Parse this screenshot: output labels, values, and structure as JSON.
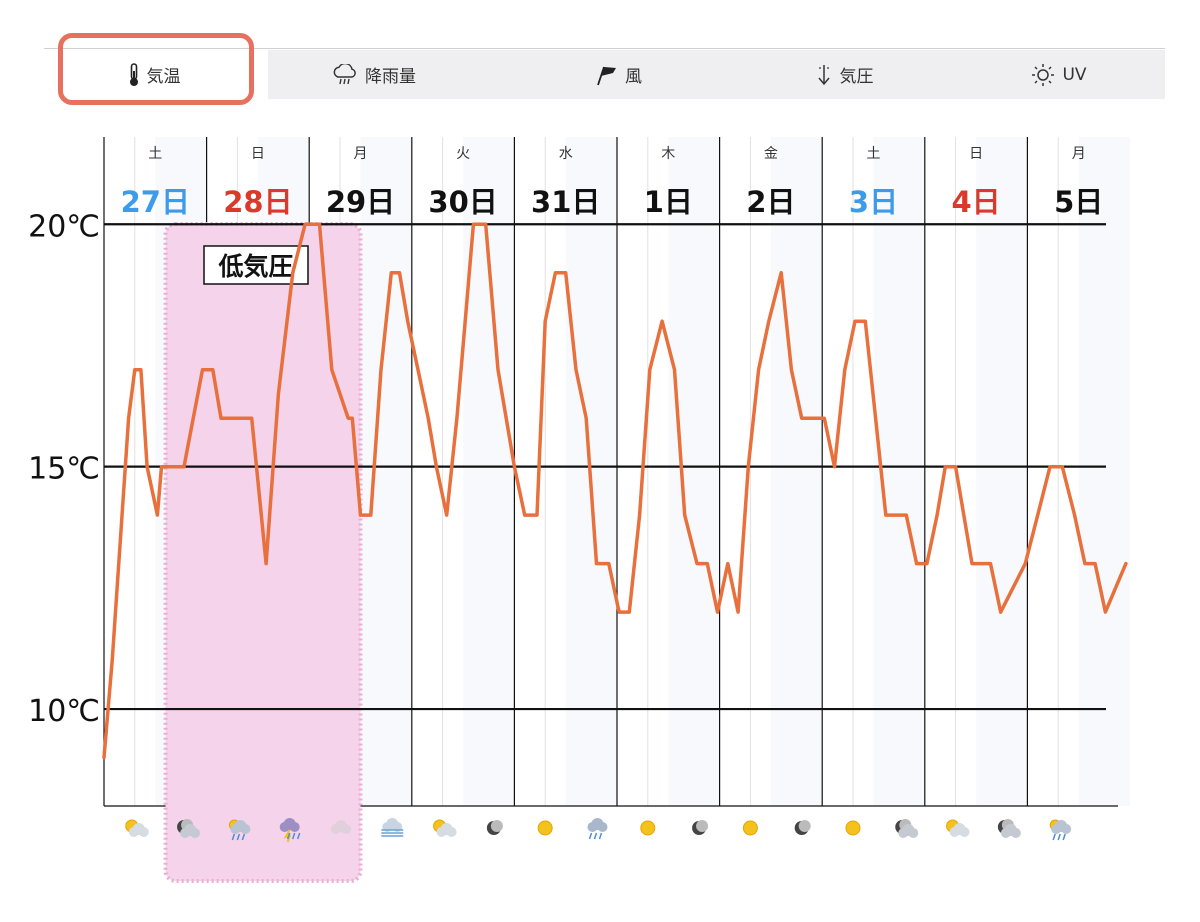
{
  "tabs": [
    {
      "label": "気温",
      "icon": "thermometer-icon"
    },
    {
      "label": "降雨量",
      "icon": "rain-cloud-icon"
    },
    {
      "label": "風",
      "icon": "wind-flag-icon"
    },
    {
      "label": "気圧",
      "icon": "pressure-arrow-icon"
    },
    {
      "label": "UV",
      "icon": "sun-icon"
    }
  ],
  "colors": {
    "line": "#e8703c",
    "saturday": "#3d9be9",
    "sunday": "#d93a2b",
    "annotation_fill": "#f5d3ea",
    "annotation_border": "#ebaed3",
    "tab_highlight": "#e8705f"
  },
  "annotation": {
    "label": "低気圧",
    "start_day_index": 0.6,
    "end_day_index": 2.5
  },
  "chart_data": {
    "type": "line",
    "title": "",
    "xlabel": "",
    "ylabel": "",
    "ylim": [
      8,
      21.8
    ],
    "yticks": [
      {
        "value": 10,
        "label": "10℃"
      },
      {
        "value": 15,
        "label": "15℃"
      },
      {
        "value": 20,
        "label": "20℃"
      }
    ],
    "grid": true,
    "days": [
      {
        "weekday": "土",
        "date": "27日",
        "type": "sat"
      },
      {
        "weekday": "日",
        "date": "28日",
        "type": "sun"
      },
      {
        "weekday": "月",
        "date": "29日",
        "type": "week"
      },
      {
        "weekday": "火",
        "date": "30日",
        "type": "week"
      },
      {
        "weekday": "水",
        "date": "31日",
        "type": "week"
      },
      {
        "weekday": "木",
        "date": "1日",
        "type": "week"
      },
      {
        "weekday": "金",
        "date": "2日",
        "type": "week"
      },
      {
        "weekday": "土",
        "date": "3日",
        "type": "sat"
      },
      {
        "weekday": "日",
        "date": "4日",
        "type": "sun"
      },
      {
        "weekday": "月",
        "date": "5日",
        "type": "week"
      }
    ],
    "x_unit": "days since start of 27日",
    "series": [
      {
        "name": "",
        "x": [
          0.0,
          0.08,
          0.16,
          0.24,
          0.3,
          0.36,
          0.42,
          0.52,
          0.56,
          0.72,
          0.78,
          0.96,
          1.06,
          1.14,
          1.22,
          1.36,
          1.44,
          1.58,
          1.7,
          1.84,
          1.96,
          2.1,
          2.22,
          2.38,
          2.42,
          2.5,
          2.6,
          2.7,
          2.8,
          2.88,
          2.96,
          3.06,
          3.16,
          3.24,
          3.34,
          3.44,
          3.52,
          3.6,
          3.72,
          3.84,
          3.92,
          4.0,
          4.1,
          4.22,
          4.3,
          4.4,
          4.5,
          4.6,
          4.7,
          4.8,
          4.92,
          5.02,
          5.12,
          5.22,
          5.32,
          5.44,
          5.56,
          5.66,
          5.78,
          5.88,
          5.98,
          6.08,
          6.18,
          6.28,
          6.38,
          6.48,
          6.6,
          6.7,
          6.8,
          6.9,
          7.02,
          7.12,
          7.22,
          7.32,
          7.42,
          7.52,
          7.62,
          7.72,
          7.82,
          7.92,
          8.02,
          8.12,
          8.2,
          8.3,
          8.38,
          8.46,
          8.56,
          8.64,
          8.74,
          8.86,
          8.98,
          9.1,
          9.22,
          9.34,
          9.46,
          9.56,
          9.66,
          9.76,
          9.86,
          9.96
        ],
        "values": [
          9.0,
          11.0,
          13.5,
          16.0,
          17.0,
          17.0,
          15.0,
          14.0,
          15.0,
          15.0,
          15.0,
          17.0,
          17.0,
          16.0,
          16.0,
          16.0,
          16.0,
          13.0,
          16.5,
          19.0,
          20.0,
          20.0,
          17.0,
          16.0,
          16.0,
          14.0,
          14.0,
          17.0,
          19.0,
          19.0,
          18.0,
          17.0,
          16.0,
          15.0,
          14.0,
          16.0,
          18.0,
          20.0,
          20.0,
          17.0,
          16.0,
          15.0,
          14.0,
          14.0,
          18.0,
          19.0,
          19.0,
          17.0,
          16.0,
          13.0,
          13.0,
          12.0,
          12.0,
          14.0,
          17.0,
          18.0,
          17.0,
          14.0,
          13.0,
          13.0,
          12.0,
          13.0,
          12.0,
          15.0,
          17.0,
          18.0,
          19.0,
          17.0,
          16.0,
          16.0,
          16.0,
          15.0,
          17.0,
          18.0,
          18.0,
          16.0,
          14.0,
          14.0,
          14.0,
          13.0,
          13.0,
          14.0,
          15.0,
          15.0,
          14.0,
          13.0,
          13.0,
          13.0,
          12.0,
          12.5,
          13.0,
          14.0,
          15.0,
          15.0,
          14.0,
          13.0,
          13.0,
          12.0,
          12.5,
          13.0
        ]
      }
    ],
    "weather_icons": [
      {
        "day": 0.3,
        "icon": "partly-sunny-icon"
      },
      {
        "day": 0.8,
        "icon": "cloudy-night-icon"
      },
      {
        "day": 1.3,
        "icon": "rain-sun-icon"
      },
      {
        "day": 1.8,
        "icon": "thunderstorm-icon"
      },
      {
        "day": 2.3,
        "icon": "mist-icon"
      },
      {
        "day": 2.8,
        "icon": "fog-icon"
      },
      {
        "day": 3.3,
        "icon": "partly-sunny-icon"
      },
      {
        "day": 3.8,
        "icon": "moon-cloud-icon"
      },
      {
        "day": 4.3,
        "icon": "sunny-icon"
      },
      {
        "day": 4.8,
        "icon": "rain-icon"
      },
      {
        "day": 5.3,
        "icon": "sunny-icon"
      },
      {
        "day": 5.8,
        "icon": "moon-cloud-icon"
      },
      {
        "day": 6.3,
        "icon": "sunny-icon"
      },
      {
        "day": 6.8,
        "icon": "moon-icon"
      },
      {
        "day": 7.3,
        "icon": "sunny-icon"
      },
      {
        "day": 7.8,
        "icon": "cloudy-night-icon"
      },
      {
        "day": 8.3,
        "icon": "partly-sunny-icon"
      },
      {
        "day": 8.8,
        "icon": "cloudy-night-icon"
      },
      {
        "day": 9.3,
        "icon": "rain-sun-icon"
      }
    ]
  }
}
